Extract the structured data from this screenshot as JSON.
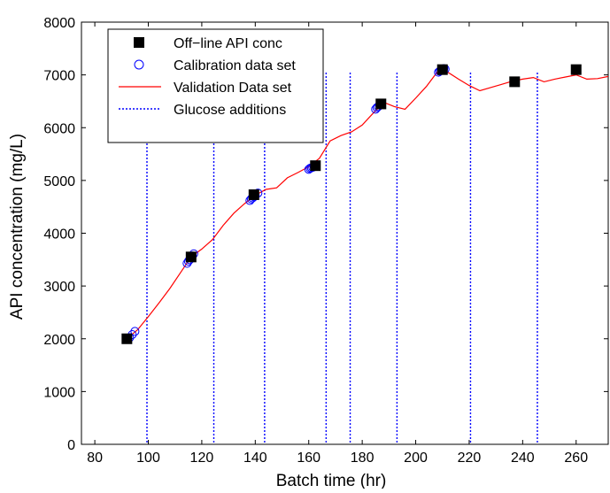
{
  "chart_data": {
    "type": "line",
    "title": "",
    "xlabel": "Batch time (hr)",
    "ylabel": "API concentration (mg/L)",
    "xlim": [
      75,
      272
    ],
    "ylim": [
      0,
      8000
    ],
    "xticks": [
      80,
      100,
      120,
      140,
      160,
      180,
      200,
      220,
      240,
      260
    ],
    "yticks": [
      0,
      1000,
      2000,
      3000,
      4000,
      5000,
      6000,
      7000,
      8000
    ],
    "grid": false,
    "legend_position": "top-left",
    "legend": [
      {
        "label": "Off−line API conc",
        "marker": "filled-square",
        "color": "#000000"
      },
      {
        "label": "Calibration data set",
        "marker": "open-circle",
        "color": "#0000ff"
      },
      {
        "label": "Validation Data set",
        "marker": "solid-line",
        "color": "#ff0000"
      },
      {
        "label": "Glucose additions",
        "marker": "dotted-line",
        "color": "#0000ff"
      }
    ],
    "series": [
      {
        "name": "Off−line API conc",
        "style": "square",
        "color": "#000000",
        "x": [
          92,
          116,
          139.5,
          162.5,
          187,
          210,
          237,
          260
        ],
        "y": [
          2000,
          3550,
          4730,
          5280,
          6450,
          7100,
          6870,
          7100
        ]
      },
      {
        "name": "Calibration data set",
        "style": "circle",
        "color": "#0000ff",
        "x": [
          93,
          94,
          95,
          114.5,
          115,
          115.5,
          116,
          116.5,
          117,
          138,
          138.5,
          139,
          139.5,
          140,
          141,
          160,
          160.5,
          161,
          161.5,
          162,
          162.5,
          185,
          185.5,
          186,
          186.5,
          187,
          208.5,
          209,
          209.5,
          210,
          210.5,
          211
        ],
        "y": [
          2020,
          2080,
          2140,
          3430,
          3470,
          3500,
          3540,
          3570,
          3610,
          4620,
          4650,
          4670,
          4690,
          4720,
          4760,
          5210,
          5230,
          5240,
          5250,
          5260,
          5280,
          6350,
          6380,
          6400,
          6430,
          6460,
          7050,
          7070,
          7090,
          7110,
          7120,
          7110
        ]
      },
      {
        "name": "Validation Data set",
        "style": "line",
        "color": "#ff0000",
        "x": [
          92,
          96,
          100,
          104,
          108,
          112,
          116,
          120,
          124,
          128,
          132,
          136,
          140,
          144,
          148,
          152,
          156,
          160,
          164,
          168,
          172,
          176,
          180,
          184,
          188,
          192,
          196,
          200,
          204,
          208,
          212,
          216,
          220,
          224,
          228,
          232,
          236,
          240,
          244,
          248,
          252,
          256,
          260,
          264,
          268,
          272
        ],
        "y": [
          2000,
          2170,
          2420,
          2680,
          2950,
          3250,
          3550,
          3700,
          3880,
          4150,
          4380,
          4560,
          4720,
          4830,
          4860,
          5050,
          5150,
          5260,
          5420,
          5750,
          5850,
          5920,
          6050,
          6270,
          6480,
          6400,
          6350,
          6560,
          6780,
          7050,
          7050,
          6920,
          6800,
          6700,
          6760,
          6820,
          6880,
          6920,
          6950,
          6870,
          6920,
          6960,
          7000,
          6920,
          6930,
          6970
        ]
      }
    ],
    "vlines": {
      "name": "Glucose additions",
      "color": "#0000ff",
      "x": [
        99.5,
        124.5,
        143.5,
        166.5,
        175.5,
        193,
        220.5,
        245.5
      ]
    }
  }
}
